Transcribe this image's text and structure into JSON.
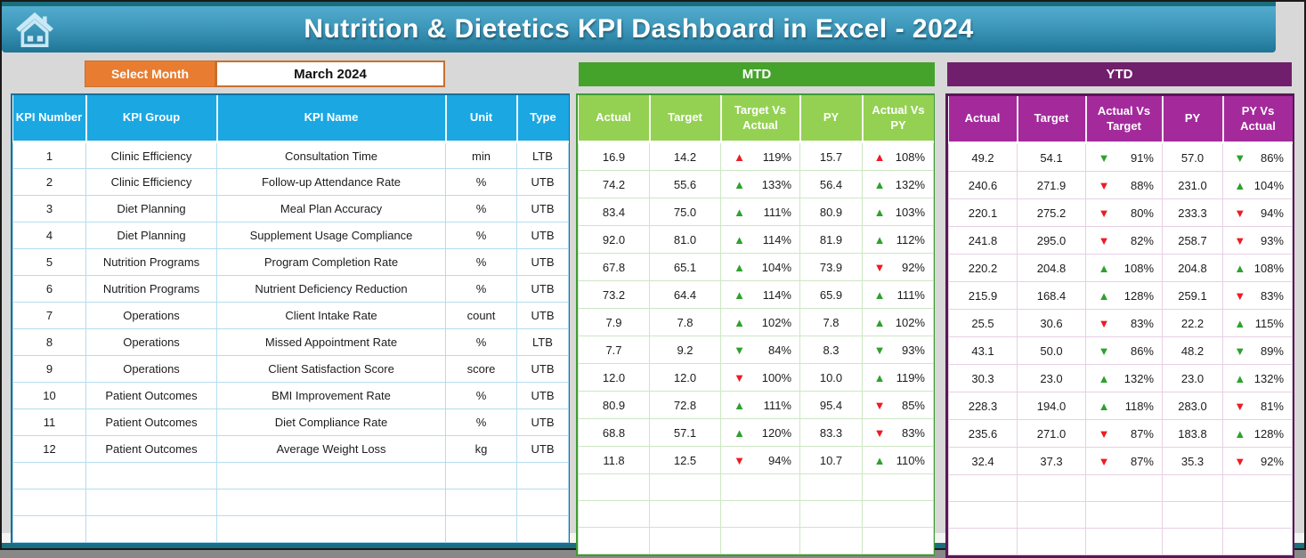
{
  "header": {
    "title": "Nutrition & Dietetics KPI Dashboard in Excel - 2024"
  },
  "controls": {
    "select_month_label": "Select Month",
    "selected_month": "March 2024"
  },
  "sections": {
    "mtd_label": "MTD",
    "ytd_label": "YTD"
  },
  "icons": {
    "home": "home-icon",
    "up_arrow": "▲",
    "down_arrow": "▼"
  },
  "kpi_table": {
    "headers": [
      "KPI Number",
      "KPI Group",
      "KPI Name",
      "Unit",
      "Type"
    ]
  },
  "mtd_table": {
    "headers": [
      "Actual",
      "Target",
      "Target Vs Actual",
      "PY",
      "Actual Vs PY"
    ]
  },
  "ytd_table": {
    "headers": [
      "Actual",
      "Target",
      "Actual Vs Target",
      "PY",
      "PY Vs Actual"
    ]
  },
  "empty_rows": 3,
  "rows": [
    {
      "num": "1",
      "group": "Clinic Efficiency",
      "name": "Consultation Time",
      "unit": "min",
      "type": "LTB",
      "mtd": {
        "actual": "16.9",
        "target": "14.2",
        "tva": {
          "pct": "119%",
          "dir": "up",
          "tone": "bad"
        },
        "py": "15.7",
        "avp": {
          "pct": "108%",
          "dir": "up",
          "tone": "bad"
        }
      },
      "ytd": {
        "actual": "49.2",
        "target": "54.1",
        "avt": {
          "pct": "91%",
          "dir": "down",
          "tone": "good"
        },
        "py": "57.0",
        "pva": {
          "pct": "86%",
          "dir": "down",
          "tone": "good"
        }
      }
    },
    {
      "num": "2",
      "group": "Clinic Efficiency",
      "name": "Follow-up Attendance Rate",
      "unit": "%",
      "type": "UTB",
      "mtd": {
        "actual": "74.2",
        "target": "55.6",
        "tva": {
          "pct": "133%",
          "dir": "up",
          "tone": "good"
        },
        "py": "56.4",
        "avp": {
          "pct": "132%",
          "dir": "up",
          "tone": "good"
        }
      },
      "ytd": {
        "actual": "240.6",
        "target": "271.9",
        "avt": {
          "pct": "88%",
          "dir": "down",
          "tone": "bad"
        },
        "py": "231.0",
        "pva": {
          "pct": "104%",
          "dir": "up",
          "tone": "good"
        }
      }
    },
    {
      "num": "3",
      "group": "Diet Planning",
      "name": "Meal Plan Accuracy",
      "unit": "%",
      "type": "UTB",
      "mtd": {
        "actual": "83.4",
        "target": "75.0",
        "tva": {
          "pct": "111%",
          "dir": "up",
          "tone": "good"
        },
        "py": "80.9",
        "avp": {
          "pct": "103%",
          "dir": "up",
          "tone": "good"
        }
      },
      "ytd": {
        "actual": "220.1",
        "target": "275.2",
        "avt": {
          "pct": "80%",
          "dir": "down",
          "tone": "bad"
        },
        "py": "233.3",
        "pva": {
          "pct": "94%",
          "dir": "down",
          "tone": "bad"
        }
      }
    },
    {
      "num": "4",
      "group": "Diet Planning",
      "name": "Supplement Usage Compliance",
      "unit": "%",
      "type": "UTB",
      "mtd": {
        "actual": "92.0",
        "target": "81.0",
        "tva": {
          "pct": "114%",
          "dir": "up",
          "tone": "good"
        },
        "py": "81.9",
        "avp": {
          "pct": "112%",
          "dir": "up",
          "tone": "good"
        }
      },
      "ytd": {
        "actual": "241.8",
        "target": "295.0",
        "avt": {
          "pct": "82%",
          "dir": "down",
          "tone": "bad"
        },
        "py": "258.7",
        "pva": {
          "pct": "93%",
          "dir": "down",
          "tone": "bad"
        }
      }
    },
    {
      "num": "5",
      "group": "Nutrition Programs",
      "name": "Program Completion Rate",
      "unit": "%",
      "type": "UTB",
      "mtd": {
        "actual": "67.8",
        "target": "65.1",
        "tva": {
          "pct": "104%",
          "dir": "up",
          "tone": "good"
        },
        "py": "73.9",
        "avp": {
          "pct": "92%",
          "dir": "down",
          "tone": "bad"
        }
      },
      "ytd": {
        "actual": "220.2",
        "target": "204.8",
        "avt": {
          "pct": "108%",
          "dir": "up",
          "tone": "good"
        },
        "py": "204.8",
        "pva": {
          "pct": "108%",
          "dir": "up",
          "tone": "good"
        }
      }
    },
    {
      "num": "6",
      "group": "Nutrition Programs",
      "name": "Nutrient Deficiency Reduction",
      "unit": "%",
      "type": "UTB",
      "mtd": {
        "actual": "73.2",
        "target": "64.4",
        "tva": {
          "pct": "114%",
          "dir": "up",
          "tone": "good"
        },
        "py": "65.9",
        "avp": {
          "pct": "111%",
          "dir": "up",
          "tone": "good"
        }
      },
      "ytd": {
        "actual": "215.9",
        "target": "168.4",
        "avt": {
          "pct": "128%",
          "dir": "up",
          "tone": "good"
        },
        "py": "259.1",
        "pva": {
          "pct": "83%",
          "dir": "down",
          "tone": "bad"
        }
      }
    },
    {
      "num": "7",
      "group": "Operations",
      "name": "Client Intake Rate",
      "unit": "count",
      "type": "UTB",
      "mtd": {
        "actual": "7.9",
        "target": "7.8",
        "tva": {
          "pct": "102%",
          "dir": "up",
          "tone": "good"
        },
        "py": "7.8",
        "avp": {
          "pct": "102%",
          "dir": "up",
          "tone": "good"
        }
      },
      "ytd": {
        "actual": "25.5",
        "target": "30.6",
        "avt": {
          "pct": "83%",
          "dir": "down",
          "tone": "bad"
        },
        "py": "22.2",
        "pva": {
          "pct": "115%",
          "dir": "up",
          "tone": "good"
        }
      }
    },
    {
      "num": "8",
      "group": "Operations",
      "name": "Missed Appointment Rate",
      "unit": "%",
      "type": "LTB",
      "mtd": {
        "actual": "7.7",
        "target": "9.2",
        "tva": {
          "pct": "84%",
          "dir": "down",
          "tone": "good"
        },
        "py": "8.3",
        "avp": {
          "pct": "93%",
          "dir": "down",
          "tone": "good"
        }
      },
      "ytd": {
        "actual": "43.1",
        "target": "50.0",
        "avt": {
          "pct": "86%",
          "dir": "down",
          "tone": "good"
        },
        "py": "48.2",
        "pva": {
          "pct": "89%",
          "dir": "down",
          "tone": "good"
        }
      }
    },
    {
      "num": "9",
      "group": "Operations",
      "name": "Client Satisfaction Score",
      "unit": "score",
      "type": "UTB",
      "mtd": {
        "actual": "12.0",
        "target": "12.0",
        "tva": {
          "pct": "100%",
          "dir": "down",
          "tone": "bad"
        },
        "py": "10.0",
        "avp": {
          "pct": "119%",
          "dir": "up",
          "tone": "good"
        }
      },
      "ytd": {
        "actual": "30.3",
        "target": "23.0",
        "avt": {
          "pct": "132%",
          "dir": "up",
          "tone": "good"
        },
        "py": "23.0",
        "pva": {
          "pct": "132%",
          "dir": "up",
          "tone": "good"
        }
      }
    },
    {
      "num": "10",
      "group": "Patient Outcomes",
      "name": "BMI Improvement Rate",
      "unit": "%",
      "type": "UTB",
      "mtd": {
        "actual": "80.9",
        "target": "72.8",
        "tva": {
          "pct": "111%",
          "dir": "up",
          "tone": "good"
        },
        "py": "95.4",
        "avp": {
          "pct": "85%",
          "dir": "down",
          "tone": "bad"
        }
      },
      "ytd": {
        "actual": "228.3",
        "target": "194.0",
        "avt": {
          "pct": "118%",
          "dir": "up",
          "tone": "good"
        },
        "py": "283.0",
        "pva": {
          "pct": "81%",
          "dir": "down",
          "tone": "bad"
        }
      }
    },
    {
      "num": "11",
      "group": "Patient Outcomes",
      "name": "Diet Compliance Rate",
      "unit": "%",
      "type": "UTB",
      "mtd": {
        "actual": "68.8",
        "target": "57.1",
        "tva": {
          "pct": "120%",
          "dir": "up",
          "tone": "good"
        },
        "py": "83.3",
        "avp": {
          "pct": "83%",
          "dir": "down",
          "tone": "bad"
        }
      },
      "ytd": {
        "actual": "235.6",
        "target": "271.0",
        "avt": {
          "pct": "87%",
          "dir": "down",
          "tone": "bad"
        },
        "py": "183.8",
        "pva": {
          "pct": "128%",
          "dir": "up",
          "tone": "good"
        }
      }
    },
    {
      "num": "12",
      "group": "Patient Outcomes",
      "name": "Average Weight Loss",
      "unit": "kg",
      "type": "UTB",
      "mtd": {
        "actual": "11.8",
        "target": "12.5",
        "tva": {
          "pct": "94%",
          "dir": "down",
          "tone": "bad"
        },
        "py": "10.7",
        "avp": {
          "pct": "110%",
          "dir": "up",
          "tone": "good"
        }
      },
      "ytd": {
        "actual": "32.4",
        "target": "37.3",
        "avt": {
          "pct": "87%",
          "dir": "down",
          "tone": "bad"
        },
        "py": "35.3",
        "pva": {
          "pct": "92%",
          "dir": "down",
          "tone": "bad"
        }
      }
    }
  ],
  "colors": {
    "page_bg": "#D8D8D8",
    "teal_dark": "#1A6F7E",
    "banner_top": "#53ACCE",
    "banner_bottom": "#1F7495",
    "home_icon": "#C9E8F6",
    "orange": "#E87D32",
    "orange_border": "#C86F2F",
    "blue_header": "#1BA7E2",
    "blue_border": "#156F9B",
    "blue_grid": "#B5DCEF",
    "green_banner": "#45A22B",
    "green_header": "#94D153",
    "green_border": "#3F9A35",
    "green_grid": "#CDE7C3",
    "purple_banner": "#701F6C",
    "purple_header": "#A42A9C",
    "purple_border": "#571954",
    "purple_grid": "#E7CFE4",
    "arrow_green": "#2EA12E",
    "arrow_red": "#EC1C24"
  }
}
